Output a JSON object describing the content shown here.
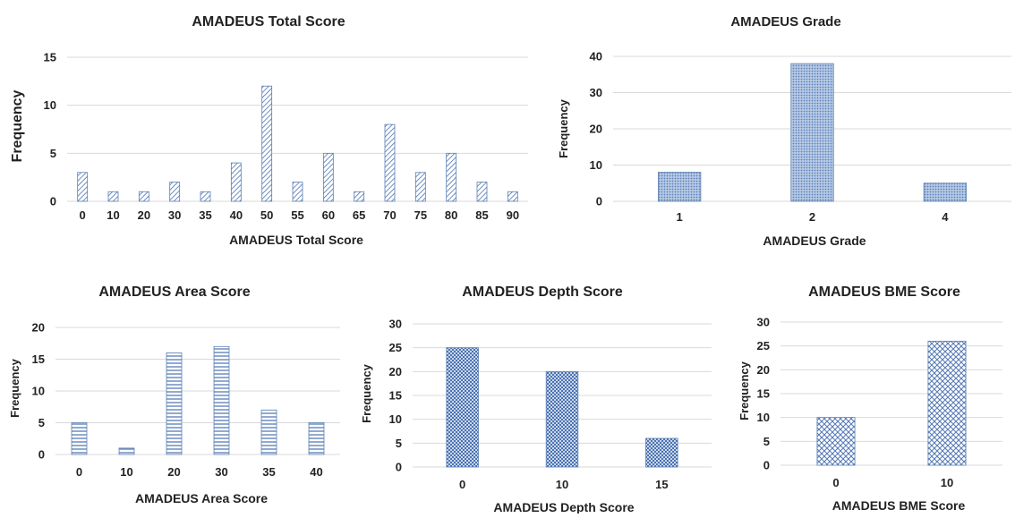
{
  "colors": {
    "bar_stroke": "#5a7fb3",
    "bar_fill": "#4a72b0",
    "grid": "#d9d9d9",
    "text": "#222222"
  },
  "chart_data": [
    {
      "id": "total",
      "type": "bar",
      "title": "AMADEUS Total Score",
      "xlabel": "AMADEUS Total Score",
      "ylabel": "Frequency",
      "categories": [
        "0",
        "10",
        "20",
        "30",
        "35",
        "40",
        "50",
        "55",
        "60",
        "65",
        "70",
        "75",
        "80",
        "85",
        "90"
      ],
      "values": [
        3,
        1,
        1,
        2,
        1,
        4,
        12,
        2,
        5,
        1,
        8,
        3,
        5,
        2,
        1
      ],
      "ylim": [
        0,
        15
      ],
      "yticks": [
        0,
        5,
        10,
        15
      ],
      "grid": true,
      "pattern": "diagonal"
    },
    {
      "id": "grade",
      "type": "bar",
      "title": "AMADEUS Grade",
      "xlabel": "AMADEUS Grade",
      "ylabel": "Frequency",
      "categories": [
        "1",
        "2",
        "4"
      ],
      "values": [
        8,
        38,
        5
      ],
      "ylim": [
        0,
        40
      ],
      "yticks": [
        0,
        10,
        20,
        30,
        40
      ],
      "grid": true,
      "pattern": "dots"
    },
    {
      "id": "area",
      "type": "bar",
      "title": "AMADEUS Area Score",
      "xlabel": "AMADEUS Area Score",
      "ylabel": "Frequency",
      "categories": [
        "0",
        "10",
        "20",
        "30",
        "35",
        "40"
      ],
      "values": [
        5,
        1,
        16,
        17,
        7,
        5
      ],
      "ylim": [
        0,
        20
      ],
      "yticks": [
        0,
        5,
        10,
        15,
        20
      ],
      "grid": true,
      "pattern": "horizontal"
    },
    {
      "id": "depth",
      "type": "bar",
      "title": "AMADEUS Depth Score",
      "xlabel": "AMADEUS Depth Score",
      "ylabel": "Frequency",
      "categories": [
        "0",
        "10",
        "15"
      ],
      "values": [
        25,
        20,
        6
      ],
      "ylim": [
        0,
        30
      ],
      "yticks": [
        0,
        5,
        10,
        15,
        20,
        25,
        30
      ],
      "grid": true,
      "pattern": "checker"
    },
    {
      "id": "bme",
      "type": "bar",
      "title": "AMADEUS BME Score",
      "xlabel": "AMADEUS BME Score",
      "ylabel": "Frequency",
      "categories": [
        "0",
        "10"
      ],
      "values": [
        10,
        26
      ],
      "ylim": [
        0,
        30
      ],
      "yticks": [
        0,
        5,
        10,
        15,
        20,
        25,
        30
      ],
      "grid": true,
      "pattern": "diamond"
    }
  ]
}
